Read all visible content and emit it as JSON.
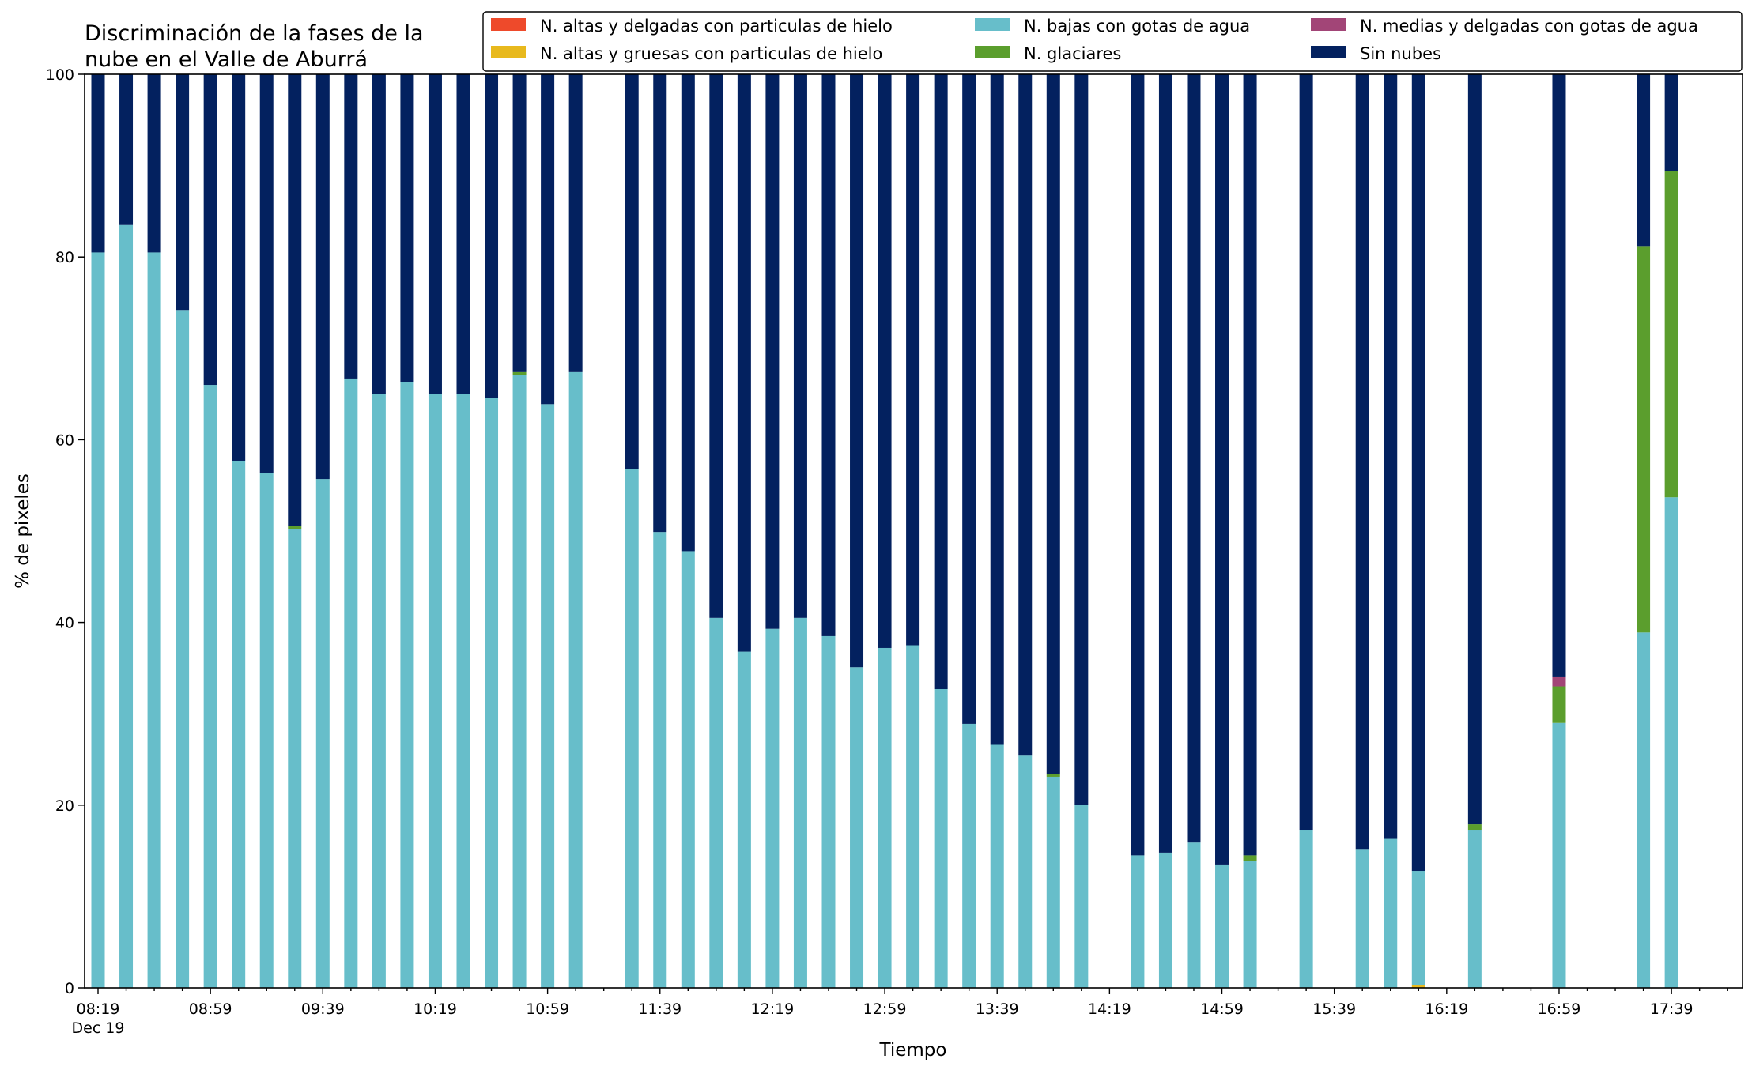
{
  "chart_data": {
    "type": "bar",
    "stacked": true,
    "title": [
      "Discriminación de la fases de la",
      "nube en el Valle de Aburrá"
    ],
    "xlabel": "Tiempo",
    "ylabel": "% de pixeles",
    "ylim": [
      0,
      100
    ],
    "yticks": [
      "0",
      "20",
      "40",
      "60",
      "80",
      "100"
    ],
    "grid": false,
    "legend_position": "top-right",
    "x_tick_labels": [
      "08:19",
      "08:59",
      "09:39",
      "10:19",
      "10:59",
      "11:39",
      "12:19",
      "12:59",
      "13:39",
      "14:19",
      "14:59",
      "15:39",
      "16:19",
      "16:59",
      "17:39"
    ],
    "x_tick_sublabel": "Dec 19",
    "x_tick_interval_min": 10,
    "x_start": "08:19",
    "series": [
      {
        "name": "N. altas y delgadas con particulas de hielo",
        "color": "#EE4A2B"
      },
      {
        "name": "N. altas y gruesas con particulas de hielo",
        "color": "#E8B91D"
      },
      {
        "name": "N. bajas con gotas de agua",
        "color": "#67BECA"
      },
      {
        "name": "N. glaciares",
        "color": "#5B9E2D"
      },
      {
        "name": "N. medias y delgadas con gotas de agua",
        "color": "#A24577"
      },
      {
        "name": "Sin nubes",
        "color": "#03215F"
      }
    ],
    "stack_order": [
      "N. altas y delgadas con particulas de hielo",
      "N. altas y gruesas con particulas de hielo",
      "N. bajas con gotas de agua",
      "N. glaciares",
      "N. medias y delgadas con gotas de agua",
      "Sin nubes"
    ],
    "bars": [
      {
        "time": "08:19",
        "values": [
          0,
          0,
          80.5,
          0,
          0,
          19.5
        ]
      },
      {
        "time": "08:29",
        "values": [
          0,
          0,
          83.5,
          0,
          0,
          16.5
        ]
      },
      {
        "time": "08:39",
        "values": [
          0,
          0,
          80.5,
          0,
          0,
          19.5
        ]
      },
      {
        "time": "08:49",
        "values": [
          0,
          0,
          74.2,
          0,
          0,
          25.8
        ]
      },
      {
        "time": "08:59",
        "values": [
          0,
          0,
          66.0,
          0,
          0,
          34.0
        ]
      },
      {
        "time": "09:09",
        "values": [
          0,
          0,
          57.7,
          0,
          0,
          42.3
        ]
      },
      {
        "time": "09:19",
        "values": [
          0,
          0,
          56.4,
          0,
          0,
          43.6
        ]
      },
      {
        "time": "09:29",
        "values": [
          0,
          0,
          50.2,
          0.4,
          0,
          49.4
        ]
      },
      {
        "time": "09:39",
        "values": [
          0,
          0,
          55.7,
          0,
          0,
          44.3
        ]
      },
      {
        "time": "09:49",
        "values": [
          0,
          0,
          66.7,
          0,
          0,
          33.3
        ]
      },
      {
        "time": "09:59",
        "values": [
          0,
          0,
          65.0,
          0,
          0,
          35.0
        ]
      },
      {
        "time": "10:09",
        "values": [
          0,
          0,
          66.3,
          0,
          0,
          33.7
        ]
      },
      {
        "time": "10:19",
        "values": [
          0,
          0,
          65.0,
          0,
          0,
          35.0
        ]
      },
      {
        "time": "10:29",
        "values": [
          0,
          0,
          65.0,
          0,
          0,
          35.0
        ]
      },
      {
        "time": "10:39",
        "values": [
          0,
          0,
          64.6,
          0,
          0,
          35.4
        ]
      },
      {
        "time": "10:49",
        "values": [
          0,
          0,
          67.1,
          0.3,
          0,
          32.6
        ]
      },
      {
        "time": "10:59",
        "values": [
          0,
          0,
          63.9,
          0,
          0,
          36.1
        ]
      },
      {
        "time": "11:09",
        "values": [
          0,
          0,
          67.4,
          0,
          0,
          32.6
        ]
      },
      {
        "time": "11:29",
        "values": [
          0,
          0,
          56.8,
          0,
          0,
          43.2
        ]
      },
      {
        "time": "11:39",
        "values": [
          0,
          0,
          49.9,
          0,
          0,
          50.1
        ]
      },
      {
        "time": "11:49",
        "values": [
          0,
          0,
          47.8,
          0,
          0,
          52.2
        ]
      },
      {
        "time": "11:59",
        "values": [
          0,
          0,
          40.5,
          0,
          0,
          59.5
        ]
      },
      {
        "time": "12:09",
        "values": [
          0,
          0,
          36.8,
          0,
          0,
          63.2
        ]
      },
      {
        "time": "12:19",
        "values": [
          0,
          0,
          39.3,
          0,
          0,
          60.7
        ]
      },
      {
        "time": "12:29",
        "values": [
          0,
          0,
          40.5,
          0,
          0,
          59.5
        ]
      },
      {
        "time": "12:39",
        "values": [
          0,
          0,
          38.5,
          0,
          0,
          61.5
        ]
      },
      {
        "time": "12:49",
        "values": [
          0,
          0,
          35.1,
          0,
          0,
          64.9
        ]
      },
      {
        "time": "12:59",
        "values": [
          0,
          0,
          37.2,
          0,
          0,
          62.8
        ]
      },
      {
        "time": "13:09",
        "values": [
          0,
          0,
          37.5,
          0,
          0,
          62.5
        ]
      },
      {
        "time": "13:19",
        "values": [
          0,
          0,
          32.7,
          0,
          0,
          67.3
        ]
      },
      {
        "time": "13:29",
        "values": [
          0,
          0,
          28.9,
          0,
          0,
          71.1
        ]
      },
      {
        "time": "13:39",
        "values": [
          0,
          0,
          26.6,
          0,
          0,
          73.4
        ]
      },
      {
        "time": "13:49",
        "values": [
          0,
          0,
          25.5,
          0,
          0,
          74.5
        ]
      },
      {
        "time": "13:59",
        "values": [
          0,
          0,
          23.1,
          0.3,
          0,
          76.6
        ]
      },
      {
        "time": "14:09",
        "values": [
          0,
          0,
          20.0,
          0,
          0,
          80.0
        ]
      },
      {
        "time": "14:29",
        "values": [
          0,
          0,
          14.5,
          0,
          0,
          85.5
        ]
      },
      {
        "time": "14:39",
        "values": [
          0,
          0,
          14.8,
          0,
          0,
          85.2
        ]
      },
      {
        "time": "14:49",
        "values": [
          0,
          0,
          15.9,
          0,
          0,
          84.1
        ]
      },
      {
        "time": "14:59",
        "values": [
          0,
          0,
          13.5,
          0,
          0,
          86.5
        ]
      },
      {
        "time": "15:09",
        "values": [
          0,
          0,
          13.9,
          0.6,
          0,
          85.5
        ]
      },
      {
        "time": "15:29",
        "values": [
          0,
          0,
          17.3,
          0,
          0,
          82.7
        ]
      },
      {
        "time": "15:49",
        "values": [
          0,
          0,
          15.2,
          0,
          0,
          84.8
        ]
      },
      {
        "time": "15:59",
        "values": [
          0,
          0,
          16.3,
          0,
          0,
          83.7
        ]
      },
      {
        "time": "16:09",
        "values": [
          0,
          0.3,
          12.5,
          0,
          0,
          87.2
        ]
      },
      {
        "time": "16:29",
        "values": [
          0,
          0,
          17.3,
          0.6,
          0,
          82.1
        ]
      },
      {
        "time": "16:59",
        "values": [
          0,
          0,
          29.0,
          4.0,
          1.0,
          66.0
        ]
      },
      {
        "time": "17:29",
        "values": [
          0,
          0,
          38.9,
          42.3,
          0,
          18.8
        ]
      },
      {
        "time": "17:39",
        "values": [
          0,
          0,
          53.7,
          35.7,
          0,
          10.6
        ]
      }
    ]
  }
}
